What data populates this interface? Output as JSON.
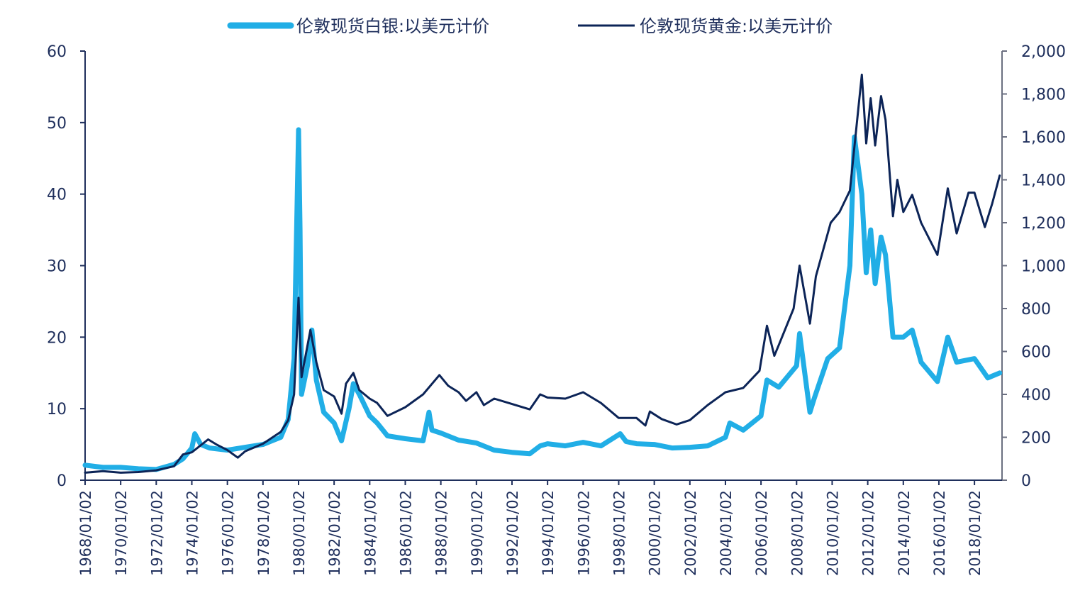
{
  "chart_data": {
    "type": "line",
    "title": "",
    "legend_position": "top",
    "grid": false,
    "x_ticks": [
      "1968/01/02",
      "1970/01/02",
      "1972/01/02",
      "1974/01/02",
      "1976/01/02",
      "1978/01/02",
      "1980/01/02",
      "1982/01/02",
      "1984/01/02",
      "1986/01/02",
      "1988/01/02",
      "1990/01/02",
      "1992/01/02",
      "1994/01/02",
      "1996/01/02",
      "1998/01/02",
      "2000/01/02",
      "2002/01/02",
      "2004/01/02",
      "2006/01/02",
      "2008/01/02",
      "2010/01/02",
      "2012/01/02",
      "2014/01/02",
      "2016/01/02",
      "2018/01/02"
    ],
    "y_left": {
      "range": [
        0,
        60
      ],
      "ticks": [
        "0",
        "10",
        "20",
        "30",
        "40",
        "50",
        "60"
      ]
    },
    "y_right": {
      "range": [
        0,
        2000
      ],
      "ticks": [
        "0",
        "200",
        "400",
        "600",
        "800",
        "1,000",
        "1,200",
        "1,400",
        "1,600",
        "1,800",
        "2,000"
      ]
    },
    "series": [
      {
        "name": "伦敦现货白银:以美元计价",
        "axis": "left",
        "color": "#21aee6",
        "points": [
          [
            "1968/01/02",
            2.1
          ],
          [
            "1969/01/02",
            1.8
          ],
          [
            "1970/01/02",
            1.8
          ],
          [
            "1971/01/02",
            1.6
          ],
          [
            "1972/01/02",
            1.5
          ],
          [
            "1973/01/02",
            2.2
          ],
          [
            "1973/07/02",
            3.0
          ],
          [
            "1974/01/02",
            4.5
          ],
          [
            "1974/03/02",
            6.5
          ],
          [
            "1974/07/02",
            5.0
          ],
          [
            "1975/01/02",
            4.5
          ],
          [
            "1976/01/02",
            4.2
          ],
          [
            "1977/01/02",
            4.6
          ],
          [
            "1978/01/02",
            5.0
          ],
          [
            "1979/01/02",
            6.0
          ],
          [
            "1979/06/02",
            8.5
          ],
          [
            "1979/10/02",
            17.0
          ],
          [
            "1980/01/02",
            49.0
          ],
          [
            "1980/02/02",
            35.0
          ],
          [
            "1980/03/02",
            12.0
          ],
          [
            "1980/07/02",
            16.0
          ],
          [
            "1980/10/02",
            21.0
          ],
          [
            "1981/01/02",
            14.0
          ],
          [
            "1981/06/02",
            9.5
          ],
          [
            "1982/01/02",
            8.0
          ],
          [
            "1982/06/02",
            5.5
          ],
          [
            "1982/11/02",
            10.0
          ],
          [
            "1983/02/02",
            13.5
          ],
          [
            "1983/06/02",
            12.0
          ],
          [
            "1984/01/02",
            9.0
          ],
          [
            "1984/06/02",
            8.0
          ],
          [
            "1985/01/02",
            6.2
          ],
          [
            "1986/01/02",
            5.8
          ],
          [
            "1987/01/02",
            5.5
          ],
          [
            "1987/05/02",
            9.5
          ],
          [
            "1987/07/02",
            7.0
          ],
          [
            "1988/01/02",
            6.6
          ],
          [
            "1989/01/02",
            5.6
          ],
          [
            "1990/01/02",
            5.2
          ],
          [
            "1991/01/02",
            4.2
          ],
          [
            "1992/01/02",
            3.9
          ],
          [
            "1993/01/02",
            3.7
          ],
          [
            "1993/08/02",
            4.8
          ],
          [
            "1994/01/02",
            5.1
          ],
          [
            "1995/01/02",
            4.8
          ],
          [
            "1996/01/02",
            5.3
          ],
          [
            "1997/01/02",
            4.8
          ],
          [
            "1998/02/02",
            6.5
          ],
          [
            "1998/06/02",
            5.4
          ],
          [
            "1999/01/02",
            5.1
          ],
          [
            "2000/01/02",
            5.0
          ],
          [
            "2001/01/02",
            4.5
          ],
          [
            "2002/01/02",
            4.6
          ],
          [
            "2003/01/02",
            4.8
          ],
          [
            "2004/01/02",
            6.0
          ],
          [
            "2004/04/02",
            8.0
          ],
          [
            "2005/01/02",
            7.0
          ],
          [
            "2006/01/02",
            9.0
          ],
          [
            "2006/05/02",
            14.0
          ],
          [
            "2007/01/02",
            13.0
          ],
          [
            "2008/01/02",
            16.0
          ],
          [
            "2008/03/02",
            20.5
          ],
          [
            "2008/10/02",
            9.5
          ],
          [
            "2009/01/02",
            11.5
          ],
          [
            "2009/10/02",
            17.0
          ],
          [
            "2010/06/02",
            18.5
          ],
          [
            "2011/01/02",
            30.0
          ],
          [
            "2011/04/02",
            48.0
          ],
          [
            "2011/09/02",
            40.0
          ],
          [
            "2011/12/02",
            29.0
          ],
          [
            "2012/03/02",
            35.0
          ],
          [
            "2012/06/02",
            27.5
          ],
          [
            "2012/10/02",
            34.0
          ],
          [
            "2013/01/02",
            31.5
          ],
          [
            "2013/06/02",
            20.0
          ],
          [
            "2014/01/02",
            20.0
          ],
          [
            "2014/07/02",
            21.0
          ],
          [
            "2015/01/02",
            16.5
          ],
          [
            "2015/12/02",
            13.8
          ],
          [
            "2016/07/02",
            20.0
          ],
          [
            "2017/01/02",
            16.5
          ],
          [
            "2018/01/02",
            17.0
          ],
          [
            "2018/10/02",
            14.3
          ],
          [
            "2019/06/02",
            15.0
          ]
        ]
      },
      {
        "name": "伦敦现货黄金:以美元计价",
        "axis": "right",
        "color": "#0c2457",
        "points": [
          [
            "1968/01/02",
            35
          ],
          [
            "1969/01/02",
            42
          ],
          [
            "1970/01/02",
            35
          ],
          [
            "1971/01/02",
            38
          ],
          [
            "1972/01/02",
            46
          ],
          [
            "1973/01/02",
            65
          ],
          [
            "1973/07/02",
            120
          ],
          [
            "1974/01/02",
            130
          ],
          [
            "1974/12/02",
            190
          ],
          [
            "1975/06/02",
            165
          ],
          [
            "1976/01/02",
            140
          ],
          [
            "1976/08/02",
            105
          ],
          [
            "1977/01/02",
            135
          ],
          [
            "1978/01/02",
            170
          ],
          [
            "1979/01/02",
            225
          ],
          [
            "1979/06/02",
            280
          ],
          [
            "1979/10/02",
            400
          ],
          [
            "1980/01/02",
            850
          ],
          [
            "1980/03/02",
            480
          ],
          [
            "1980/09/02",
            700
          ],
          [
            "1981/01/02",
            550
          ],
          [
            "1981/06/02",
            420
          ],
          [
            "1982/01/02",
            390
          ],
          [
            "1982/06/02",
            310
          ],
          [
            "1982/09/02",
            450
          ],
          [
            "1983/02/02",
            500
          ],
          [
            "1983/06/02",
            420
          ],
          [
            "1984/01/02",
            380
          ],
          [
            "1984/06/02",
            360
          ],
          [
            "1985/01/02",
            300
          ],
          [
            "1986/01/02",
            340
          ],
          [
            "1987/01/02",
            400
          ],
          [
            "1987/12/02",
            490
          ],
          [
            "1988/06/02",
            440
          ],
          [
            "1989/01/02",
            410
          ],
          [
            "1989/06/02",
            370
          ],
          [
            "1990/01/02",
            410
          ],
          [
            "1990/06/02",
            350
          ],
          [
            "1991/01/02",
            380
          ],
          [
            "1992/01/02",
            355
          ],
          [
            "1993/01/02",
            330
          ],
          [
            "1993/08/02",
            400
          ],
          [
            "1994/01/02",
            385
          ],
          [
            "1995/01/02",
            380
          ],
          [
            "1996/01/02",
            410
          ],
          [
            "1997/01/02",
            360
          ],
          [
            "1998/01/02",
            290
          ],
          [
            "1999/01/02",
            290
          ],
          [
            "1999/07/02",
            255
          ],
          [
            "1999/10/02",
            320
          ],
          [
            "2000/06/02",
            285
          ],
          [
            "2001/04/02",
            260
          ],
          [
            "2002/01/02",
            280
          ],
          [
            "2003/01/02",
            350
          ],
          [
            "2004/01/02",
            410
          ],
          [
            "2005/01/02",
            430
          ],
          [
            "2005/12/02",
            510
          ],
          [
            "2006/05/02",
            720
          ],
          [
            "2006/10/02",
            580
          ],
          [
            "2007/01/02",
            630
          ],
          [
            "2007/11/02",
            800
          ],
          [
            "2008/03/02",
            1000
          ],
          [
            "2008/10/02",
            730
          ],
          [
            "2009/02/02",
            950
          ],
          [
            "2009/12/02",
            1200
          ],
          [
            "2010/06/02",
            1250
          ],
          [
            "2011/01/02",
            1350
          ],
          [
            "2011/09/02",
            1890
          ],
          [
            "2011/12/02",
            1570
          ],
          [
            "2012/03/02",
            1780
          ],
          [
            "2012/06/02",
            1560
          ],
          [
            "2012/10/02",
            1790
          ],
          [
            "2013/01/02",
            1680
          ],
          [
            "2013/06/02",
            1230
          ],
          [
            "2013/09/02",
            1400
          ],
          [
            "2014/01/02",
            1250
          ],
          [
            "2014/07/02",
            1330
          ],
          [
            "2015/01/02",
            1200
          ],
          [
            "2015/12/02",
            1050
          ],
          [
            "2016/07/02",
            1360
          ],
          [
            "2017/01/02",
            1150
          ],
          [
            "2017/09/02",
            1340
          ],
          [
            "2018/01/02",
            1340
          ],
          [
            "2018/08/02",
            1180
          ],
          [
            "2019/01/02",
            1290
          ],
          [
            "2019/06/02",
            1420
          ]
        ]
      }
    ]
  }
}
